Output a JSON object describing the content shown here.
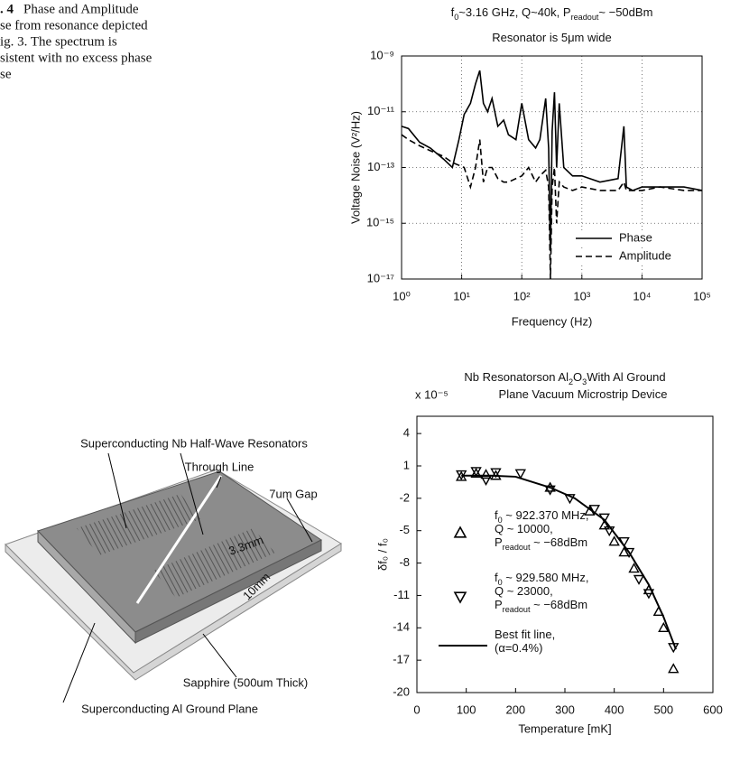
{
  "caption": {
    "label": ". 4",
    "lines": [
      "Phase and Amplitude",
      "se from resonance depicted",
      "ig. 3. The spectrum is",
      "sistent with no excess phase",
      "se"
    ]
  },
  "diagram": {
    "labels": [
      "Superconducting Nb Half-Wave Resonators",
      "Through Line",
      "7um Gap",
      "3.3mm",
      "10mm",
      "Sapphire (500um Thick)",
      "Superconducting Al Ground Plane"
    ]
  },
  "chart_data": [
    {
      "type": "line",
      "title": [
        [
          "f",
          "0",
          "~3.16 GHz, Q~40k, P",
          "readout",
          "~ −50dBm"
        ],
        [
          "Resonator is 5μm wide"
        ]
      ],
      "x_label": "Frequency (Hz)",
      "y_label": "Voltage Noise (V²/Hz)",
      "log_x": true,
      "log_y": true,
      "grid": true,
      "legend": "lower right",
      "xlim": [
        1,
        100000
      ],
      "ylim": [
        1e-17,
        1e-09
      ],
      "xticks": [
        {
          "value": 1,
          "label": "10⁰"
        },
        {
          "value": 10,
          "label": "10¹"
        },
        {
          "value": 100,
          "label": "10²"
        },
        {
          "value": 1000,
          "label": "10³"
        },
        {
          "value": 10000,
          "label": "10⁴"
        },
        {
          "value": 100000,
          "label": "10⁵"
        }
      ],
      "yticks": [
        {
          "value": 1e-17,
          "label": "10⁻¹⁷"
        },
        {
          "value": 1e-15,
          "label": "10⁻¹⁵"
        },
        {
          "value": 1e-13,
          "label": "10⁻¹³"
        },
        {
          "value": 1e-11,
          "label": "10⁻¹¹"
        },
        {
          "value": 1e-09,
          "label": "10⁻⁹"
        }
      ],
      "x": [
        1,
        1.3,
        2,
        3,
        5,
        7,
        9,
        11,
        14,
        17,
        20,
        23,
        27,
        32,
        40,
        50,
        60,
        80,
        100,
        130,
        170,
        200,
        250,
        280,
        300,
        320,
        350,
        380,
        420,
        500,
        700,
        1000,
        2000,
        4000,
        5000,
        5500,
        7000,
        10000,
        20000,
        50000,
        100000
      ],
      "series": [
        {
          "name": "Phase",
          "color": "#000000",
          "dash": "solid",
          "values": [
            3e-12,
            2.5e-12,
            8e-13,
            5e-13,
            2e-13,
            1e-13,
            1e-12,
            8e-12,
            2e-11,
            1e-10,
            3e-10,
            2e-11,
            1e-11,
            3e-11,
            3e-12,
            5e-12,
            1.5e-12,
            1e-12,
            2e-11,
            1e-12,
            5e-13,
            1e-12,
            3e-11,
            5e-13,
            1e-16,
            2e-12,
            5e-11,
            1e-13,
            2e-11,
            1e-13,
            5e-14,
            5e-14,
            3e-14,
            4e-14,
            3e-12,
            2e-14,
            1.5e-14,
            2e-14,
            2e-14,
            2e-14,
            1.5e-14
          ]
        },
        {
          "name": "Amplitude",
          "color": "#000000",
          "dash": "dashed",
          "values": [
            1.5e-12,
            1e-12,
            6e-13,
            4e-13,
            2.5e-13,
            1.5e-13,
            1.2e-13,
            1e-13,
            2e-14,
            1e-13,
            1e-12,
            3e-14,
            1e-13,
            1e-13,
            4e-14,
            3e-14,
            3e-14,
            4e-14,
            5e-14,
            1e-13,
            3e-14,
            5e-14,
            8e-14,
            2e-14,
            1e-17,
            2e-14,
            1e-13,
            1e-15,
            3e-14,
            2e-14,
            1.5e-14,
            2e-14,
            1.5e-14,
            1.5e-14,
            3e-14,
            1.5e-14,
            1.5e-14,
            1.5e-14,
            2e-14,
            1.5e-14,
            1.5e-14
          ]
        }
      ]
    },
    {
      "type": "scatter",
      "title": [
        [
          "Nb Resonatorson Al",
          "2",
          "O",
          "3",
          "With Al Ground"
        ],
        [
          "Plane Vacuum Microstrip Device"
        ]
      ],
      "y_multiplier": "x 10⁻⁵",
      "x_label": "Temperature [mK]",
      "y_label": "δf₀ / f₀",
      "xlim": [
        0,
        600
      ],
      "ylim": [
        -20,
        5.6
      ],
      "xticks": [
        0,
        100,
        200,
        300,
        400,
        500,
        600
      ],
      "yticks": [
        4,
        1,
        -2,
        -5,
        -8,
        -11,
        -14,
        -17,
        -20
      ],
      "series": [
        {
          "name": [
            [
              "f",
              "0",
              " ~ 922.370 MHz,"
            ],
            [
              "Q ~ 10000,"
            ],
            [
              "P",
              "readout",
              " ~ −68dBm"
            ]
          ],
          "marker": "triangle-up",
          "color": "#000000",
          "x": [
            90,
            120,
            140,
            160,
            270,
            350,
            380,
            400,
            420,
            440,
            470,
            490,
            500,
            520
          ],
          "values": [
            0,
            0.3,
            0.2,
            0.1,
            -1,
            -3.2,
            -4.5,
            -6,
            -7,
            -8.5,
            -10.5,
            -12.5,
            -14,
            -17.8
          ]
        },
        {
          "name": [
            [
              "f",
              "0",
              " ~ 929.580 MHz,"
            ],
            [
              "Q ~ 23000,"
            ],
            [
              "P",
              "readout",
              " ~ −68dBm"
            ]
          ],
          "marker": "triangle-down",
          "color": "#000000",
          "x": [
            90,
            120,
            140,
            160,
            210,
            270,
            310,
            360,
            380,
            390,
            420,
            430,
            450,
            470,
            520
          ],
          "values": [
            0.2,
            0.5,
            -0.3,
            0.4,
            0.3,
            -1.2,
            -2,
            -3,
            -3.8,
            -5,
            -6,
            -7,
            -9.5,
            -10.8,
            -15.8
          ]
        },
        {
          "name": [
            [
              "Best fit line,"
            ],
            [
              "(α=0.4%)"
            ]
          ],
          "marker": "line",
          "color": "#000000",
          "x": [
            90,
            150,
            200,
            270,
            320,
            380,
            430,
            470,
            500,
            525
          ],
          "values": [
            0.1,
            0.1,
            0,
            -1,
            -2,
            -4,
            -7,
            -10,
            -13,
            -16
          ]
        }
      ]
    }
  ]
}
